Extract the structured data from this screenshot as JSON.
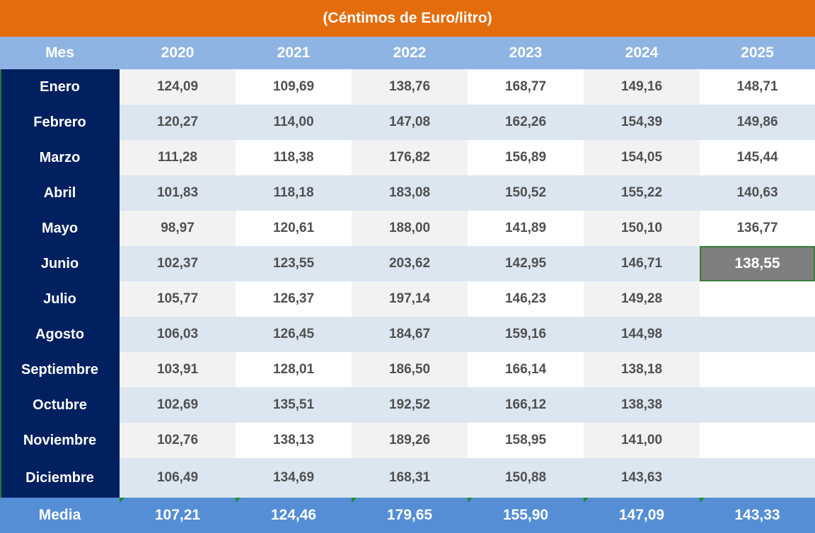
{
  "title": "(Céntimos de Euro/litro)",
  "header": {
    "month_label": "Mes",
    "years": [
      "2020",
      "2021",
      "2022",
      "2023",
      "2024",
      "2025"
    ]
  },
  "rows": [
    {
      "month": "Enero",
      "values": [
        "124,09",
        "109,69",
        "138,76",
        "168,77",
        "149,16",
        "148,71"
      ]
    },
    {
      "month": "Febrero",
      "values": [
        "120,27",
        "114,00",
        "147,08",
        "162,26",
        "154,39",
        "149,86"
      ]
    },
    {
      "month": "Marzo",
      "values": [
        "111,28",
        "118,38",
        "176,82",
        "156,89",
        "154,05",
        "145,44"
      ]
    },
    {
      "month": "Abril",
      "values": [
        "101,83",
        "118,18",
        "183,08",
        "150,52",
        "155,22",
        "140,63"
      ]
    },
    {
      "month": "Mayo",
      "values": [
        "98,97",
        "120,61",
        "188,00",
        "141,89",
        "150,10",
        "136,77"
      ]
    },
    {
      "month": "Junio",
      "values": [
        "102,37",
        "123,55",
        "203,62",
        "142,95",
        "146,71",
        "138,55"
      ]
    },
    {
      "month": "Julio",
      "values": [
        "105,77",
        "126,37",
        "197,14",
        "146,23",
        "149,28",
        ""
      ]
    },
    {
      "month": "Agosto",
      "values": [
        "106,03",
        "126,45",
        "184,67",
        "159,16",
        "144,98",
        ""
      ]
    },
    {
      "month": "Septiembre",
      "values": [
        "103,91",
        "128,01",
        "186,50",
        "166,14",
        "138,18",
        ""
      ]
    },
    {
      "month": "Octubre",
      "values": [
        "102,69",
        "135,51",
        "192,52",
        "166,12",
        "138,38",
        ""
      ]
    },
    {
      "month": "Noviembre",
      "values": [
        "102,76",
        "138,13",
        "189,26",
        "158,95",
        "141,00",
        ""
      ]
    },
    {
      "month": "Diciembre",
      "values": [
        "106,49",
        "134,69",
        "168,31",
        "150,88",
        "143,63",
        ""
      ]
    }
  ],
  "footer": {
    "label": "Media",
    "values": [
      "107,21",
      "124,46",
      "179,65",
      "155,90",
      "147,09",
      "143,33"
    ]
  },
  "colors": {
    "title_bg": "#e46c0a",
    "header_bg": "#8eb4e3",
    "month_col_bg": "#002060",
    "footer_bg": "#558ed5",
    "row_light": "#dce6f1",
    "row_gray": "#f2f2f2",
    "selected_cell_bg": "#7f7f7f"
  }
}
